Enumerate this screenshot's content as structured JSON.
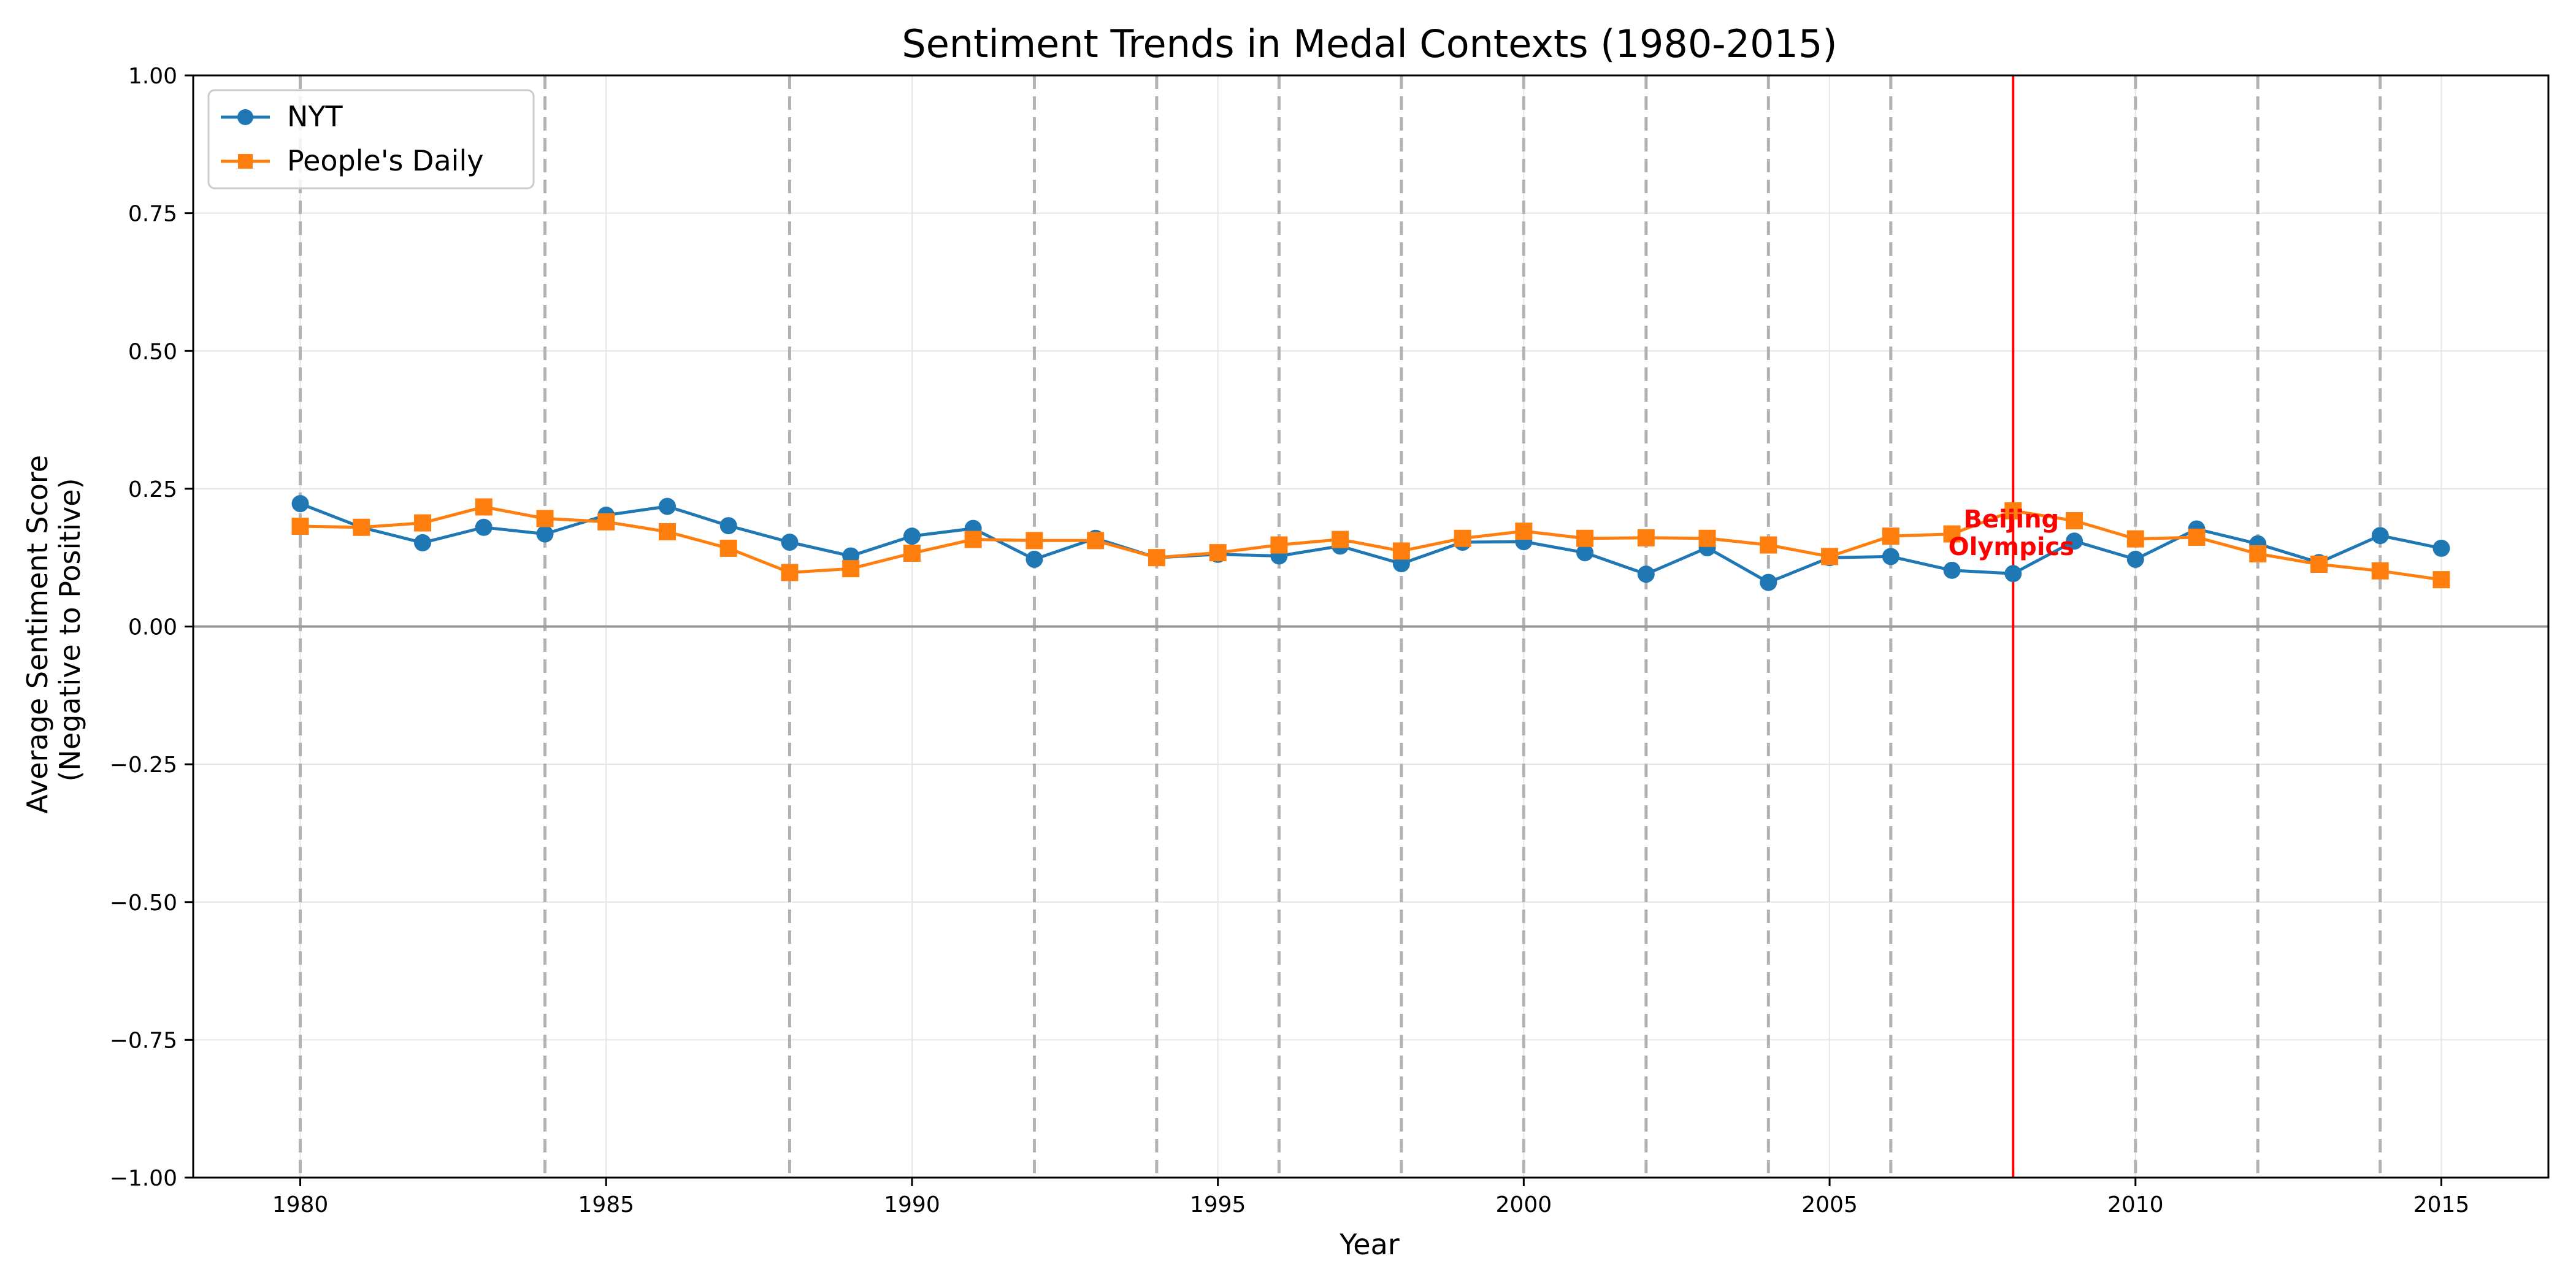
{
  "chart_data": {
    "type": "line",
    "title": "Sentiment Trends in Medal Contexts (1980-2015)",
    "xlabel": "Year",
    "ylabel_line1": "Average Sentiment Score",
    "ylabel_line2": "(Negative to Positive)",
    "xlim": [
      1978.25,
      2016.75
    ],
    "ylim": [
      -1.0,
      1.0
    ],
    "x_ticks": [
      1980,
      1985,
      1990,
      1995,
      2000,
      2005,
      2010,
      2015
    ],
    "y_ticks": [
      -1.0,
      -0.75,
      -0.5,
      -0.25,
      0.0,
      0.25,
      0.5,
      0.75,
      1.0
    ],
    "y_tick_labels": [
      "−1.00",
      "−0.75",
      "−0.50",
      "−0.25",
      "0.00",
      "0.25",
      "0.50",
      "0.75",
      "1.00"
    ],
    "grid": true,
    "legend_position": "top-left",
    "zero_line": 0.0,
    "olympic_years": [
      1980,
      1984,
      1988,
      1992,
      1994,
      1996,
      1998,
      2000,
      2002,
      2004,
      2006,
      2008,
      2010,
      2012,
      2014
    ],
    "highlight": {
      "year": 2008,
      "label_line1": "Beijing",
      "label_line2": "Olympics",
      "color": "#ff0000"
    },
    "x": [
      1980,
      1981,
      1982,
      1983,
      1984,
      1985,
      1986,
      1987,
      1988,
      1989,
      1990,
      1991,
      1992,
      1993,
      1994,
      1995,
      1996,
      1997,
      1998,
      1999,
      2000,
      2001,
      2002,
      2003,
      2004,
      2005,
      2006,
      2007,
      2008,
      2009,
      2010,
      2011,
      2012,
      2013,
      2014,
      2015
    ],
    "series": [
      {
        "name": "NYT",
        "color": "#1f77b4",
        "marker": "circle",
        "values": [
          0.223,
          0.18,
          0.152,
          0.18,
          0.168,
          0.202,
          0.218,
          0.183,
          0.153,
          0.128,
          0.164,
          0.178,
          0.122,
          0.16,
          0.125,
          0.131,
          0.128,
          0.146,
          0.114,
          0.153,
          0.154,
          0.134,
          0.095,
          0.143,
          0.08,
          0.125,
          0.127,
          0.102,
          0.096,
          0.155,
          0.122,
          0.177,
          0.15,
          0.116,
          0.165,
          0.142
        ]
      },
      {
        "name": "People's Daily",
        "color": "#ff7f0e",
        "marker": "square",
        "values": [
          0.182,
          0.18,
          0.188,
          0.217,
          0.196,
          0.19,
          0.172,
          0.142,
          0.098,
          0.105,
          0.133,
          0.158,
          0.156,
          0.156,
          0.125,
          0.134,
          0.148,
          0.158,
          0.137,
          0.16,
          0.173,
          0.16,
          0.161,
          0.16,
          0.148,
          0.127,
          0.164,
          0.168,
          0.21,
          0.192,
          0.159,
          0.162,
          0.132,
          0.113,
          0.101,
          0.085
        ]
      }
    ]
  }
}
